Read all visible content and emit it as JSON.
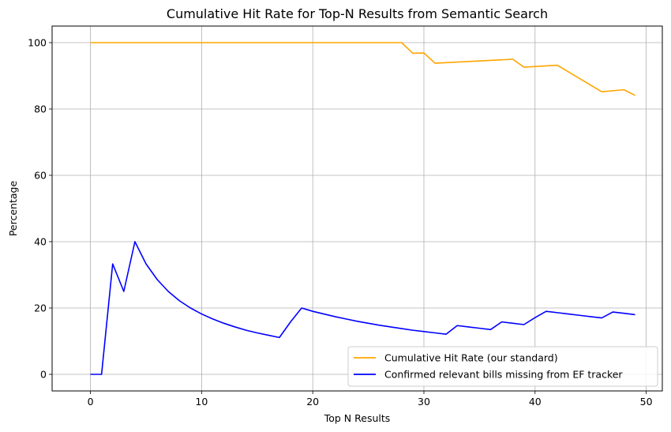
{
  "chart_data": {
    "type": "line",
    "title": "Cumulative Hit Rate for Top-N Results from Semantic Search",
    "xlabel": "Top N Results",
    "ylabel": "Percentage",
    "xlim": [
      -3.45,
      51.45
    ],
    "ylim": [
      -5,
      105
    ],
    "xticks": [
      0,
      10,
      20,
      30,
      40,
      50
    ],
    "yticks": [
      0,
      20,
      40,
      60,
      80,
      100
    ],
    "grid": true,
    "legend_position": "lower-right",
    "series": [
      {
        "name": "Cumulative Hit Rate (our standard)",
        "color": "#ffa500",
        "x": [
          0,
          28,
          29,
          30,
          31,
          38,
          39,
          42,
          46,
          48,
          49
        ],
        "y": [
          100,
          100,
          96.8,
          96.9,
          93.8,
          95.0,
          92.6,
          93.2,
          85.2,
          85.8,
          84.1
        ]
      },
      {
        "name": "Confirmed relevant bills missing from EF tracker",
        "color": "#0000ff",
        "x": [
          0,
          1,
          2,
          3,
          4,
          5,
          6,
          7,
          8,
          9,
          10,
          11,
          12,
          13,
          14,
          15,
          16,
          17,
          18,
          19,
          20,
          21,
          22,
          23,
          24,
          25,
          26,
          27,
          28,
          29,
          30,
          31,
          32,
          33,
          34,
          35,
          36,
          37,
          38,
          39,
          40,
          41,
          42,
          43,
          44,
          45,
          46,
          47,
          48,
          49
        ],
        "y": [
          0,
          0,
          33.3,
          25.0,
          40.0,
          33.3,
          28.6,
          25.0,
          22.2,
          20.0,
          18.2,
          16.7,
          15.4,
          14.3,
          13.3,
          12.5,
          11.8,
          11.1,
          15.8,
          20.0,
          19.0,
          18.2,
          17.4,
          16.7,
          16.0,
          15.4,
          14.8,
          14.3,
          13.8,
          13.3,
          12.9,
          12.5,
          12.1,
          14.7,
          14.3,
          13.9,
          13.5,
          15.8,
          15.4,
          15.0,
          17.1,
          19.0,
          18.6,
          18.2,
          17.8,
          17.4,
          17.0,
          18.8,
          18.4,
          18.0
        ]
      }
    ]
  }
}
